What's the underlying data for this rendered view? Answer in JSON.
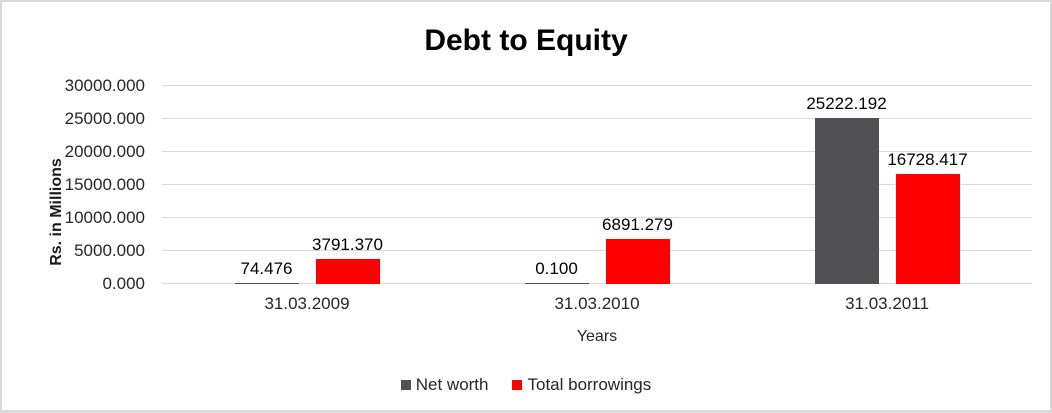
{
  "chart_data": {
    "type": "bar",
    "title": "Debt to Equity",
    "xlabel": "Years",
    "ylabel": "Rs. in Millions",
    "categories": [
      "31.03.2009",
      "31.03.2010",
      "31.03.2011"
    ],
    "series": [
      {
        "name": "Net worth",
        "color": "#515154",
        "values": [
          74.476,
          0.1,
          25222.192
        ],
        "labels": [
          "74.476",
          "0.100",
          "25222.192"
        ]
      },
      {
        "name": "Total borrowings",
        "color": "#ff0000",
        "values": [
          3791.37,
          6891.279,
          16728.417
        ],
        "labels": [
          "3791.370",
          "6891.279",
          "16728.417"
        ]
      }
    ],
    "ylim": [
      0,
      30000
    ],
    "ytick_step": 5000,
    "ytick_labels": [
      "0.000",
      "5000.000",
      "10000.000",
      "15000.000",
      "20000.000",
      "25000.000",
      "30000.000"
    ],
    "grid": true,
    "legend_position": "bottom",
    "colors": {
      "gridline": "#d9d9d9",
      "axis_text": "#262626",
      "data_label_text": "#000000",
      "frame_border": "#d9d9d9"
    }
  }
}
